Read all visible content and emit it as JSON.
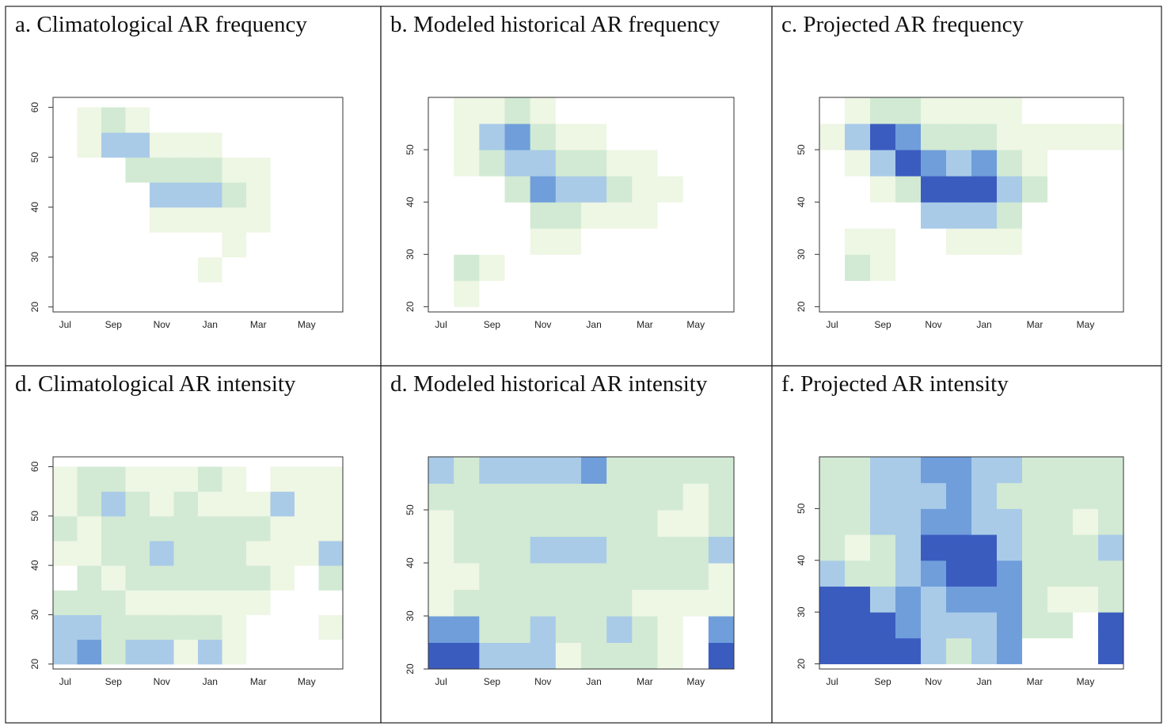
{
  "chart_data": [
    {
      "type": "heatmap",
      "title": "a. Climatological AR frequency",
      "categories": [
        "Jul",
        null,
        "Sep",
        null,
        "Nov",
        null,
        "Jan",
        null,
        "Mar",
        null,
        "May",
        null
      ],
      "ybins": [
        20,
        25,
        30,
        35,
        40,
        45,
        50,
        55,
        60
      ],
      "ylim": [
        19,
        62
      ],
      "yticks": [
        20,
        30,
        40,
        50,
        60
      ],
      "colors": [
        "#ffffff",
        "#eef6e4",
        "#d2ead3",
        "#a9cbe8",
        "#6f9edb",
        "#3b5cbf"
      ],
      "values": [
        [
          0,
          0,
          0,
          0,
          0,
          0,
          0,
          0,
          0,
          0,
          0,
          0
        ],
        [
          0,
          0,
          0,
          0,
          0,
          0,
          1,
          0,
          0,
          0,
          0,
          0
        ],
        [
          0,
          0,
          0,
          0,
          0,
          0,
          0,
          1,
          0,
          0,
          0,
          0
        ],
        [
          0,
          0,
          0,
          0,
          1,
          1,
          1,
          1,
          1,
          0,
          0,
          0
        ],
        [
          0,
          0,
          0,
          0,
          3,
          3,
          3,
          2,
          1,
          0,
          0,
          0
        ],
        [
          0,
          0,
          0,
          2,
          2,
          2,
          2,
          1,
          1,
          0,
          0,
          0
        ],
        [
          0,
          1,
          3,
          3,
          1,
          1,
          1,
          0,
          0,
          0,
          0,
          0
        ],
        [
          0,
          1,
          2,
          1,
          0,
          0,
          0,
          0,
          0,
          0,
          0,
          0
        ]
      ]
    },
    {
      "type": "heatmap",
      "title": "b. Modeled historical AR frequency",
      "categories": [
        "Jul",
        null,
        "Sep",
        null,
        "Nov",
        null,
        "Jan",
        null,
        "Mar",
        null,
        "May",
        null
      ],
      "ybins": [
        20,
        25,
        30,
        35,
        40,
        45,
        50,
        55,
        60
      ],
      "ylim": [
        19,
        60
      ],
      "yticks": [
        20,
        30,
        40,
        50
      ],
      "colors": [
        "#ffffff",
        "#eef6e4",
        "#d2ead3",
        "#a9cbe8",
        "#6f9edb",
        "#3b5cbf"
      ],
      "values": [
        [
          0,
          1,
          0,
          0,
          0,
          0,
          0,
          0,
          0,
          0,
          0,
          0
        ],
        [
          0,
          2,
          1,
          0,
          0,
          0,
          0,
          0,
          0,
          0,
          0,
          0
        ],
        [
          0,
          0,
          0,
          0,
          1,
          1,
          0,
          0,
          0,
          0,
          0,
          0
        ],
        [
          0,
          0,
          0,
          0,
          2,
          2,
          1,
          1,
          1,
          0,
          0,
          0
        ],
        [
          0,
          0,
          0,
          2,
          4,
          3,
          3,
          2,
          1,
          1,
          0,
          0
        ],
        [
          0,
          1,
          2,
          3,
          3,
          2,
          2,
          1,
          1,
          0,
          0,
          0
        ],
        [
          0,
          1,
          3,
          4,
          2,
          1,
          1,
          0,
          0,
          0,
          0,
          0
        ],
        [
          0,
          1,
          1,
          2,
          1,
          0,
          0,
          0,
          0,
          0,
          0,
          0
        ]
      ]
    },
    {
      "type": "heatmap",
      "title": "c. Projected AR frequency",
      "categories": [
        "Jul",
        null,
        "Sep",
        null,
        "Nov",
        null,
        "Jan",
        null,
        "Mar",
        null,
        "May",
        null
      ],
      "ybins": [
        20,
        25,
        30,
        35,
        40,
        45,
        50,
        55,
        60
      ],
      "ylim": [
        19,
        60
      ],
      "yticks": [
        20,
        30,
        40,
        50
      ],
      "colors": [
        "#ffffff",
        "#eef6e4",
        "#d2ead3",
        "#a9cbe8",
        "#6f9edb",
        "#3b5cbf"
      ],
      "values": [
        [
          0,
          0,
          0,
          0,
          0,
          0,
          0,
          0,
          0,
          0,
          0,
          0
        ],
        [
          0,
          2,
          1,
          0,
          0,
          0,
          0,
          0,
          0,
          0,
          0,
          0
        ],
        [
          0,
          1,
          1,
          0,
          0,
          1,
          1,
          1,
          0,
          0,
          0,
          0
        ],
        [
          0,
          0,
          0,
          0,
          3,
          3,
          3,
          2,
          0,
          0,
          0,
          0
        ],
        [
          0,
          0,
          1,
          2,
          5,
          5,
          5,
          3,
          2,
          0,
          0,
          0
        ],
        [
          0,
          1,
          3,
          5,
          4,
          3,
          4,
          2,
          1,
          0,
          0,
          0
        ],
        [
          1,
          3,
          5,
          4,
          2,
          2,
          2,
          1,
          1,
          1,
          1,
          1
        ],
        [
          0,
          1,
          2,
          2,
          1,
          1,
          1,
          1,
          0,
          0,
          0,
          0
        ]
      ]
    },
    {
      "type": "heatmap",
      "title": "d. Climatological AR intensity",
      "categories": [
        "Jul",
        null,
        "Sep",
        null,
        "Nov",
        null,
        "Jan",
        null,
        "Mar",
        null,
        "May",
        null
      ],
      "ybins": [
        20,
        25,
        30,
        35,
        40,
        45,
        50,
        55,
        60
      ],
      "ylim": [
        19,
        62
      ],
      "yticks": [
        20,
        30,
        40,
        50,
        60
      ],
      "colors": [
        "#ffffff",
        "#eef6e4",
        "#d2ead3",
        "#a9cbe8",
        "#6f9edb",
        "#3b5cbf"
      ],
      "values": [
        [
          3,
          4,
          2,
          3,
          3,
          1,
          3,
          1,
          0,
          0,
          0,
          0
        ],
        [
          3,
          3,
          2,
          2,
          2,
          2,
          2,
          1,
          0,
          0,
          0,
          1
        ],
        [
          2,
          2,
          2,
          1,
          1,
          1,
          1,
          1,
          1,
          0,
          0,
          0
        ],
        [
          0,
          2,
          1,
          2,
          2,
          2,
          2,
          2,
          2,
          1,
          0,
          2
        ],
        [
          1,
          1,
          2,
          2,
          3,
          2,
          2,
          2,
          1,
          1,
          1,
          3
        ],
        [
          2,
          1,
          2,
          2,
          2,
          2,
          2,
          2,
          2,
          1,
          1,
          1
        ],
        [
          1,
          2,
          3,
          2,
          1,
          2,
          1,
          1,
          1,
          3,
          1,
          1
        ],
        [
          1,
          2,
          2,
          1,
          1,
          1,
          2,
          1,
          0,
          1,
          1,
          1
        ]
      ]
    },
    {
      "type": "heatmap",
      "title": "d. Modeled historical AR intensity",
      "categories": [
        "Jul",
        null,
        "Sep",
        null,
        "Nov",
        null,
        "Jan",
        null,
        "Mar",
        null,
        "May",
        null
      ],
      "ybins": [
        20,
        25,
        30,
        35,
        40,
        45,
        50,
        55,
        60
      ],
      "ylim": [
        20,
        60
      ],
      "yticks": [
        20,
        30,
        40,
        50
      ],
      "colors": [
        "#ffffff",
        "#eef6e4",
        "#d2ead3",
        "#a9cbe8",
        "#6f9edb",
        "#3b5cbf"
      ],
      "values": [
        [
          5,
          5,
          3,
          3,
          3,
          1,
          2,
          2,
          2,
          1,
          0,
          5
        ],
        [
          4,
          4,
          2,
          2,
          3,
          2,
          2,
          3,
          2,
          1,
          0,
          4
        ],
        [
          1,
          2,
          2,
          2,
          2,
          2,
          2,
          2,
          1,
          1,
          1,
          1
        ],
        [
          1,
          1,
          2,
          2,
          2,
          2,
          2,
          2,
          2,
          2,
          2,
          1
        ],
        [
          1,
          2,
          2,
          2,
          3,
          3,
          3,
          2,
          2,
          2,
          2,
          3
        ],
        [
          1,
          2,
          2,
          2,
          2,
          2,
          2,
          2,
          2,
          1,
          1,
          2
        ],
        [
          2,
          2,
          2,
          2,
          2,
          2,
          2,
          2,
          2,
          2,
          1,
          2
        ],
        [
          3,
          2,
          3,
          3,
          3,
          3,
          4,
          2,
          2,
          2,
          2,
          2
        ]
      ]
    },
    {
      "type": "heatmap",
      "title": "f. Projected AR intensity",
      "categories": [
        "Jul",
        null,
        "Sep",
        null,
        "Nov",
        null,
        "Jan",
        null,
        "Mar",
        null,
        "May",
        null
      ],
      "ybins": [
        20,
        25,
        30,
        35,
        40,
        45,
        50,
        55,
        60
      ],
      "ylim": [
        19,
        60
      ],
      "yticks": [
        20,
        30,
        40,
        50
      ],
      "colors": [
        "#ffffff",
        "#eef6e4",
        "#d2ead3",
        "#a9cbe8",
        "#6f9edb",
        "#3b5cbf"
      ],
      "values": [
        [
          5,
          5,
          5,
          5,
          3,
          2,
          3,
          4,
          0,
          0,
          0,
          5
        ],
        [
          5,
          5,
          5,
          4,
          3,
          3,
          3,
          4,
          2,
          2,
          0,
          5
        ],
        [
          5,
          5,
          3,
          4,
          3,
          4,
          4,
          4,
          2,
          1,
          1,
          2
        ],
        [
          3,
          2,
          2,
          3,
          4,
          5,
          5,
          4,
          2,
          2,
          2,
          2
        ],
        [
          2,
          1,
          2,
          3,
          5,
          5,
          5,
          3,
          2,
          2,
          2,
          3
        ],
        [
          2,
          2,
          3,
          3,
          4,
          4,
          3,
          3,
          2,
          2,
          1,
          2
        ],
        [
          2,
          2,
          3,
          3,
          3,
          4,
          3,
          2,
          2,
          2,
          2,
          2
        ],
        [
          2,
          2,
          3,
          3,
          4,
          4,
          3,
          3,
          2,
          2,
          2,
          2
        ]
      ]
    }
  ]
}
